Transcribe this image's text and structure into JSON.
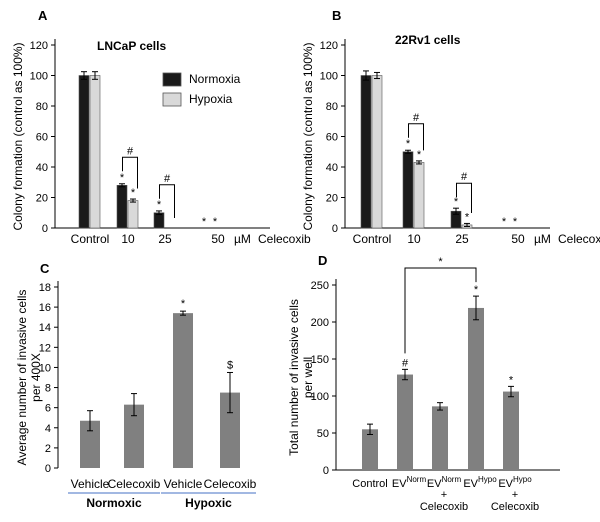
{
  "chart_data": [
    {
      "panel": "A",
      "type": "bar",
      "title": "LNCaP cells",
      "ylabel": "Colony formation (control as 100%)",
      "xlabel": "",
      "unit_label": "µM",
      "drug_label": "Celecoxib",
      "ylim": [
        0,
        120
      ],
      "yticks": [
        0,
        20,
        40,
        60,
        80,
        100,
        120
      ],
      "categories": [
        "Control",
        "10",
        "25",
        "50"
      ],
      "series": [
        {
          "name": "Normoxia",
          "color": "#1a1a1a",
          "values": [
            100,
            28,
            10,
            0
          ],
          "errors": [
            2.5,
            1.0,
            1.2,
            0
          ],
          "stars": [
            "",
            "*",
            "*",
            "*"
          ]
        },
        {
          "name": "Hypoxia",
          "color": "#d9d9d9",
          "values": [
            100,
            18,
            0,
            0
          ],
          "errors": [
            2.5,
            1.0,
            0,
            0
          ],
          "stars": [
            "",
            "*",
            "",
            "*"
          ]
        }
      ],
      "brackets": [
        {
          "category": 1,
          "label": "#"
        },
        {
          "category": 2,
          "label": "#"
        }
      ],
      "legend": "top-right"
    },
    {
      "panel": "B",
      "type": "bar",
      "title": "22Rv1 cells",
      "ylabel": "Colony formation (control as 100%)",
      "xlabel": "",
      "unit_label": "µM",
      "drug_label": "Celecoxib",
      "ylim": [
        0,
        120
      ],
      "yticks": [
        0,
        20,
        40,
        60,
        80,
        100,
        120
      ],
      "categories": [
        "Control",
        "10",
        "25",
        "50"
      ],
      "series": [
        {
          "name": "Normoxia",
          "color": "#1a1a1a",
          "values": [
            100,
            50,
            11,
            0
          ],
          "errors": [
            3.0,
            1.0,
            2.0,
            0
          ],
          "stars": [
            "",
            "*",
            "*",
            "*"
          ]
        },
        {
          "name": "Hypoxia",
          "color": "#d9d9d9",
          "values": [
            100,
            43,
            2,
            0
          ],
          "errors": [
            2.0,
            1.0,
            1.0,
            0
          ],
          "stars": [
            "",
            "*",
            "*",
            "*"
          ]
        }
      ],
      "brackets": [
        {
          "category": 1,
          "label": "#"
        },
        {
          "category": 2,
          "label": "#"
        }
      ]
    },
    {
      "panel": "C",
      "type": "bar",
      "ylabel": "Average number of invasive cells per 400X",
      "xlabel": "",
      "ylim": [
        0,
        18
      ],
      "yticks": [
        0,
        2,
        4,
        6,
        8,
        10,
        12,
        14,
        16,
        18
      ],
      "categories": [
        "Vehicle",
        "Celecoxib",
        "Vehicle",
        "Celecoxib"
      ],
      "groups": [
        {
          "label": "Normoxic",
          "from": 0,
          "to": 1
        },
        {
          "label": "Hypoxic",
          "from": 2,
          "to": 3
        }
      ],
      "color": "#808080",
      "values": [
        4.7,
        6.3,
        15.4,
        7.5
      ],
      "errors": [
        1.0,
        1.1,
        0.2,
        2.0
      ],
      "stars": [
        "",
        "",
        "*",
        "$"
      ]
    },
    {
      "panel": "D",
      "type": "bar",
      "ylabel": "Total number of invasive cells per well",
      "xlabel": "",
      "ylim": [
        0,
        250
      ],
      "yticks": [
        0,
        50,
        100,
        150,
        200,
        250
      ],
      "categories": [
        {
          "main": "Control",
          "sup": "",
          "extra": ""
        },
        {
          "main": "EV",
          "sup": "Norm",
          "extra": ""
        },
        {
          "main": "EV",
          "sup": "Norm",
          "extra": "Celecoxib"
        },
        {
          "main": "EV",
          "sup": "Hypo",
          "extra": ""
        },
        {
          "main": "EV",
          "sup": "Hypo",
          "extra": "Celecoxib"
        }
      ],
      "plus_sign": "+",
      "color": "#808080",
      "values": [
        55,
        129,
        86,
        219,
        106
      ],
      "errors": [
        7,
        7,
        5,
        16,
        7
      ],
      "stars": [
        "",
        "#",
        "",
        "*",
        "*"
      ],
      "brackets": [
        {
          "from": 1,
          "to": 3,
          "label": "*"
        }
      ]
    }
  ]
}
